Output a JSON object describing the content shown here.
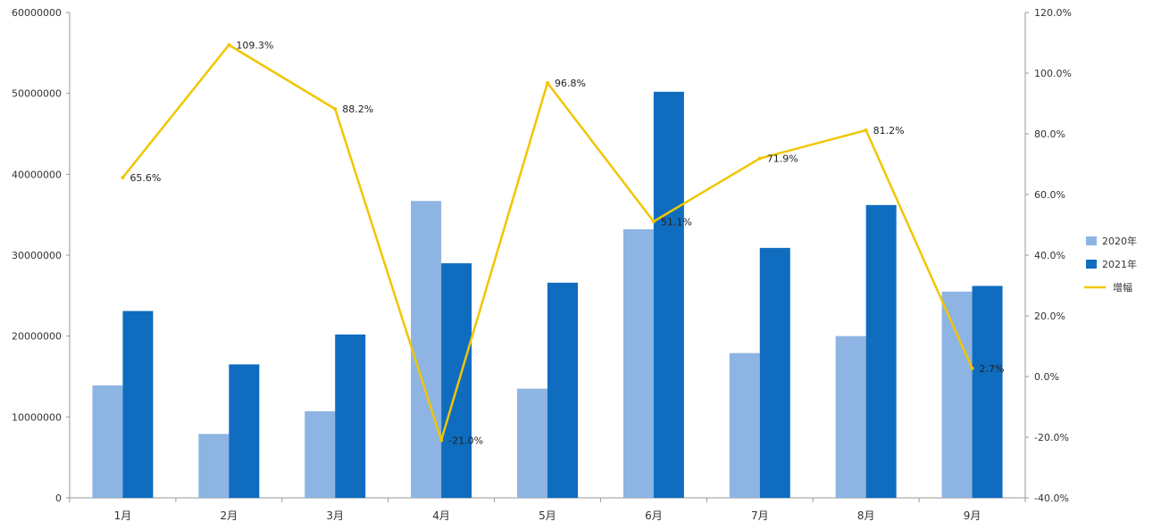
{
  "chart_data": {
    "type": "bar",
    "categories": [
      "1月",
      "2月",
      "3月",
      "4月",
      "5月",
      "6月",
      "7月",
      "8月",
      "9月"
    ],
    "series": [
      {
        "name": "2020年",
        "kind": "bar",
        "axis": "left",
        "color": "#8DB4E2",
        "values": [
          13900000,
          7900000,
          10700000,
          36700000,
          13500000,
          33200000,
          17900000,
          20000000,
          25500000
        ]
      },
      {
        "name": "2021年",
        "kind": "bar",
        "axis": "left",
        "color": "#0F6CBF",
        "values": [
          23100000,
          16500000,
          20200000,
          29000000,
          26600000,
          50200000,
          30900000,
          36200000,
          26200000
        ]
      },
      {
        "name": "增幅",
        "kind": "line",
        "axis": "right",
        "color": "#F2C500",
        "values": [
          65.6,
          109.3,
          88.2,
          -21.0,
          96.8,
          51.1,
          71.9,
          81.2,
          2.7
        ],
        "labels": [
          "65.6%",
          "109.3%",
          "88.2%",
          "-21.0%",
          "96.8%",
          "51.1%",
          "71.9%",
          "81.2%",
          "2.7%"
        ]
      }
    ],
    "y_left": {
      "ylim": [
        0,
        60000000
      ],
      "ticks": [
        0,
        10000000,
        20000000,
        30000000,
        40000000,
        50000000,
        60000000
      ],
      "tick_labels": [
        "0",
        "10000000",
        "20000000",
        "30000000",
        "40000000",
        "50000000",
        "60000000"
      ]
    },
    "y_right": {
      "ylim": [
        -40,
        120
      ],
      "ticks": [
        -40,
        -20,
        0,
        20,
        40,
        60,
        80,
        100,
        120
      ],
      "tick_labels": [
        "-40.0%",
        "-20.0%",
        "0.0%",
        "20.0%",
        "40.0%",
        "60.0%",
        "80.0%",
        "100.0%",
        "120.0%"
      ]
    },
    "legend": {
      "position": "right",
      "entries": [
        "2020年",
        "2021年",
        "增幅"
      ]
    },
    "grid": false
  }
}
